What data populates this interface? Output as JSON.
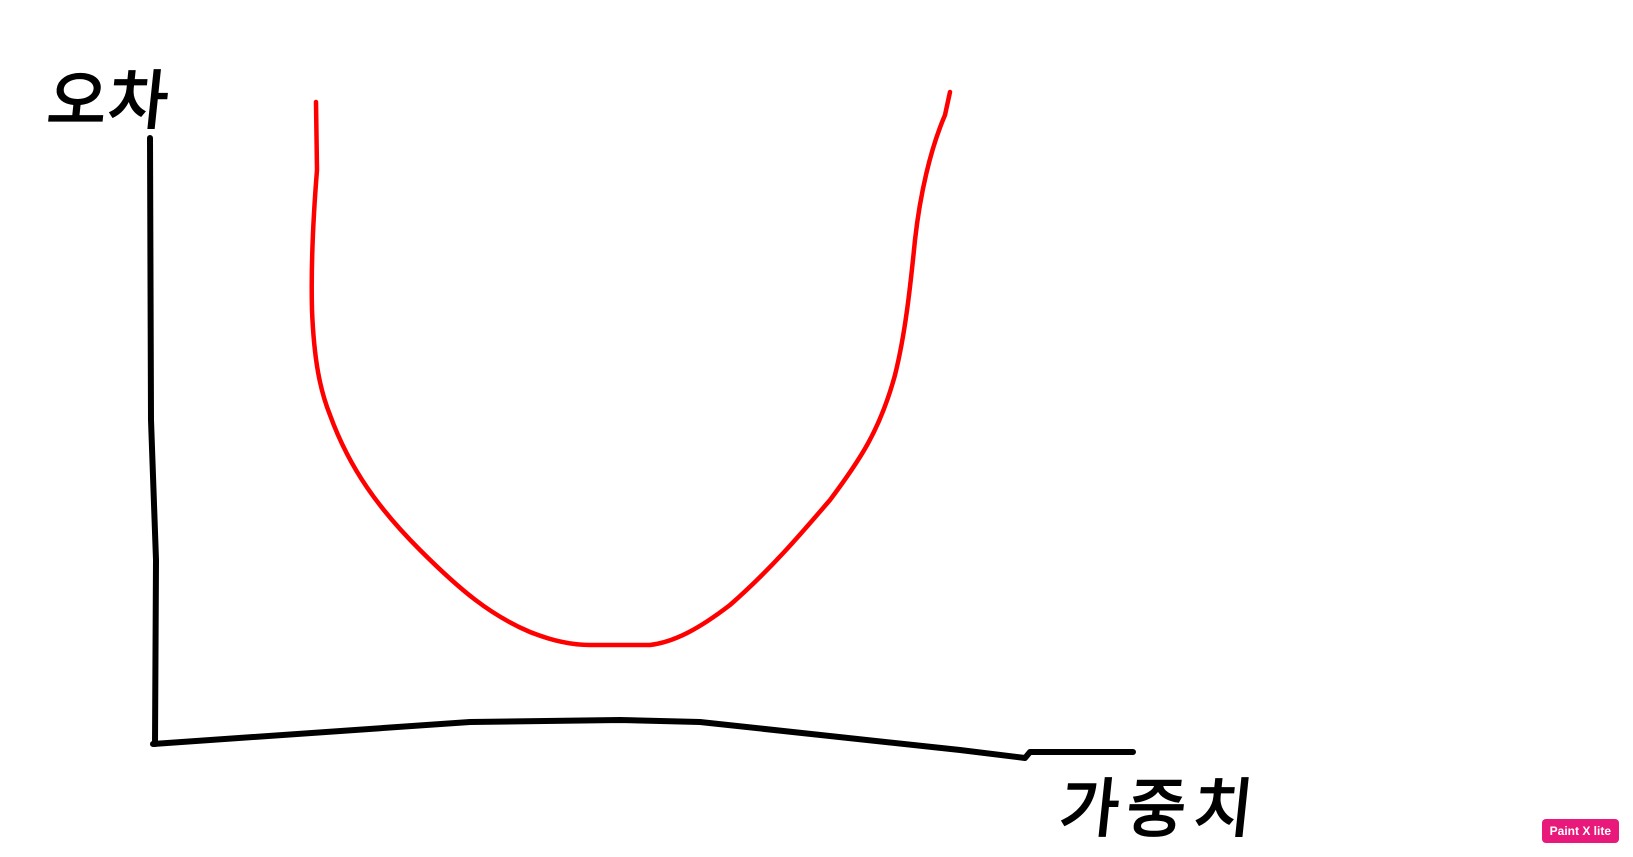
{
  "diagram": {
    "y_axis_label": "오차",
    "x_axis_label": "가중치",
    "curve_color": "#ff0000",
    "axis_color": "#000000",
    "curve_shape": "u-shaped"
  },
  "watermark": {
    "text": "Paint X lite",
    "color": "#e8197a"
  }
}
